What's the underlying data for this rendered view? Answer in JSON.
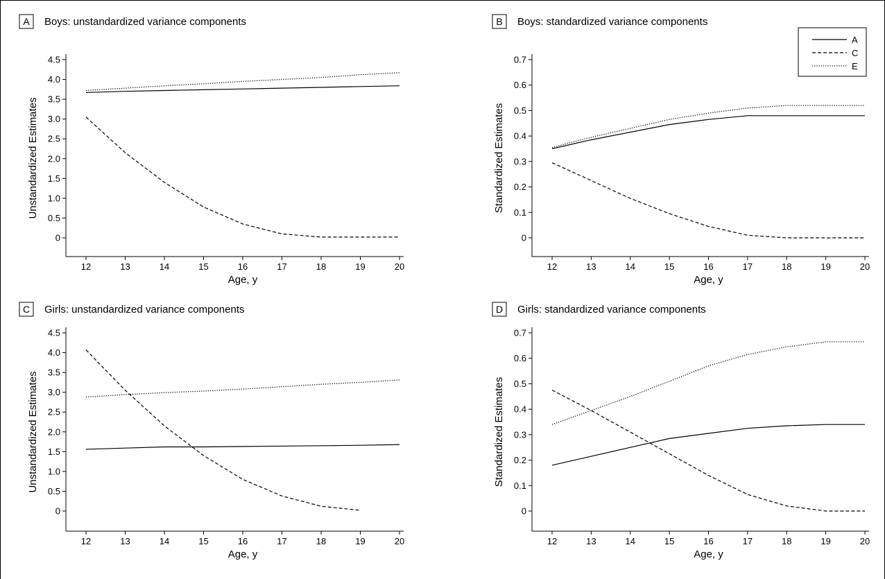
{
  "legend": {
    "entries": [
      {
        "label": "A",
        "style": "solid"
      },
      {
        "label": "C",
        "style": "dashed"
      },
      {
        "label": "E",
        "style": "dotted"
      }
    ]
  },
  "chart_data": [
    {
      "type": "line",
      "panel_letter": "A",
      "title": "Boys: unstandardized variance components",
      "xlabel": "Age, y",
      "ylabel": "Unstandardized Estimates",
      "xlim": [
        12,
        20
      ],
      "ylim": [
        0,
        4.5
      ],
      "xticks": [
        "12",
        "13",
        "14",
        "15",
        "16",
        "17",
        "18",
        "19",
        "20"
      ],
      "yticks": [
        "0",
        "0.5",
        "1.0",
        "1.5",
        "2.0",
        "2.5",
        "3.0",
        "3.5",
        "4.0",
        "4.5"
      ],
      "x": [
        12,
        13,
        14,
        15,
        16,
        17,
        18,
        19,
        20
      ],
      "series": [
        {
          "name": "A",
          "style": "solid",
          "values": [
            3.67,
            3.7,
            3.72,
            3.74,
            3.76,
            3.78,
            3.8,
            3.82,
            3.84
          ]
        },
        {
          "name": "C",
          "style": "dashed",
          "values": [
            3.05,
            2.15,
            1.4,
            0.78,
            0.35,
            0.1,
            0.02,
            0.02,
            0.02
          ]
        },
        {
          "name": "E",
          "style": "dotted",
          "values": [
            3.72,
            3.78,
            3.84,
            3.89,
            3.95,
            4.0,
            4.05,
            4.12,
            4.17
          ]
        }
      ]
    },
    {
      "type": "line",
      "panel_letter": "B",
      "title": "Boys: standardized variance components",
      "xlabel": "Age, y",
      "ylabel": "Standardized Estimates",
      "xlim": [
        12,
        20
      ],
      "ylim": [
        0,
        0.7
      ],
      "xticks": [
        "12",
        "13",
        "14",
        "15",
        "16",
        "17",
        "18",
        "19",
        "20"
      ],
      "yticks": [
        "0",
        "0.1",
        "0.2",
        "0.3",
        "0.4",
        "0.5",
        "0.6",
        "0.7"
      ],
      "x": [
        12,
        13,
        14,
        15,
        16,
        17,
        18,
        19,
        20
      ],
      "series": [
        {
          "name": "A",
          "style": "solid",
          "values": [
            0.35,
            0.385,
            0.415,
            0.445,
            0.465,
            0.48,
            0.48,
            0.48,
            0.48
          ]
        },
        {
          "name": "C",
          "style": "dashed",
          "values": [
            0.295,
            0.225,
            0.155,
            0.095,
            0.045,
            0.01,
            0.0,
            0.0,
            0.0
          ]
        },
        {
          "name": "E",
          "style": "dotted",
          "values": [
            0.355,
            0.395,
            0.43,
            0.465,
            0.49,
            0.51,
            0.52,
            0.52,
            0.52
          ]
        }
      ]
    },
    {
      "type": "line",
      "panel_letter": "C",
      "title": "Girls: unstandardized variance components",
      "xlabel": "Age, y",
      "ylabel": "Unstandardized Estimates",
      "xlim": [
        12,
        20
      ],
      "ylim": [
        0,
        4.5
      ],
      "xticks": [
        "12",
        "13",
        "14",
        "15",
        "16",
        "17",
        "18",
        "19",
        "20"
      ],
      "yticks": [
        "0",
        "0.5",
        "1.0",
        "1.5",
        "2.0",
        "2.5",
        "3.0",
        "3.5",
        "4.0",
        "4.5"
      ],
      "x": [
        12,
        13,
        14,
        15,
        16,
        17,
        18,
        19,
        20
      ],
      "series": [
        {
          "name": "A",
          "style": "solid",
          "values": [
            1.56,
            1.59,
            1.62,
            1.62,
            1.63,
            1.64,
            1.65,
            1.66,
            1.68
          ]
        },
        {
          "name": "C",
          "style": "dashed",
          "values": [
            4.07,
            3.05,
            2.15,
            1.4,
            0.8,
            0.38,
            0.12,
            0.02,
            null
          ]
        },
        {
          "name": "E",
          "style": "dotted",
          "values": [
            2.88,
            2.94,
            2.99,
            3.03,
            3.08,
            3.14,
            3.2,
            3.25,
            3.31
          ]
        }
      ]
    },
    {
      "type": "line",
      "panel_letter": "D",
      "title": "Girls: standardized variance components",
      "xlabel": "Age, y",
      "ylabel": "Standardized Estimates",
      "xlim": [
        12,
        20
      ],
      "ylim": [
        0,
        0.7
      ],
      "xticks": [
        "12",
        "13",
        "14",
        "15",
        "16",
        "17",
        "18",
        "19",
        "20"
      ],
      "yticks": [
        "0",
        "0.1",
        "0.2",
        "0.3",
        "0.4",
        "0.5",
        "0.6",
        "0.7"
      ],
      "x": [
        12,
        13,
        14,
        15,
        16,
        17,
        18,
        19,
        20
      ],
      "series": [
        {
          "name": "A",
          "style": "solid",
          "values": [
            0.18,
            0.215,
            0.25,
            0.285,
            0.305,
            0.325,
            0.335,
            0.34,
            0.34
          ]
        },
        {
          "name": "C",
          "style": "dashed",
          "values": [
            0.475,
            0.395,
            0.31,
            0.225,
            0.14,
            0.065,
            0.02,
            0.0,
            0.0
          ]
        },
        {
          "name": "E",
          "style": "dotted",
          "values": [
            0.34,
            0.395,
            0.45,
            0.51,
            0.57,
            0.615,
            0.645,
            0.665,
            0.665
          ]
        }
      ]
    }
  ]
}
